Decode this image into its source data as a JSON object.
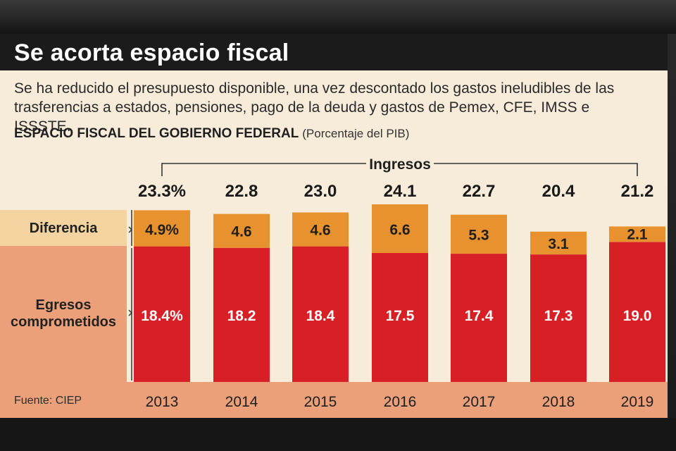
{
  "header": {
    "title": "Se acorta espacio fiscal",
    "subtitle": "Se ha reducido el presupuesto disponible, una vez descontado los gastos ineludibles de las trasferencias a estados, pensiones, pago de la deuda y gastos de Pemex, CFE, IMSS e ISSSTE."
  },
  "chart_data": {
    "type": "bar",
    "title": "ESPACIO FISCAL DEL GOBIERNO FEDERAL",
    "unit_note": "(Porcentaje del PIB)",
    "stacked": true,
    "categories": [
      "2013",
      "2014",
      "2015",
      "2016",
      "2017",
      "2018",
      "2019"
    ],
    "series": [
      {
        "name": "Egresos comprometidos",
        "values": [
          18.4,
          18.2,
          18.4,
          17.5,
          17.4,
          17.3,
          19.0
        ],
        "labels": [
          "18.4%",
          "18.2",
          "18.4",
          "17.5",
          "17.4",
          "17.3",
          "19.0"
        ],
        "color": "#d81f26"
      },
      {
        "name": "Diferencia",
        "values": [
          4.9,
          4.6,
          4.6,
          6.6,
          5.3,
          3.1,
          2.1
        ],
        "labels": [
          "4.9%",
          "4.6",
          "4.6",
          "6.6",
          "5.3",
          "3.1",
          "2.1"
        ],
        "color": "#e8912f"
      }
    ],
    "totals": {
      "name": "Ingresos",
      "values": [
        23.3,
        22.8,
        23.0,
        24.1,
        22.7,
        20.4,
        21.2
      ],
      "labels": [
        "23.3%",
        "22.8",
        "23.0",
        "24.1",
        "22.7",
        "20.4",
        "21.2"
      ]
    },
    "row_labels": {
      "diferencia": "Diferencia",
      "egresos": "Egresos comprometidos"
    },
    "source": "Fuente: CIEP"
  }
}
